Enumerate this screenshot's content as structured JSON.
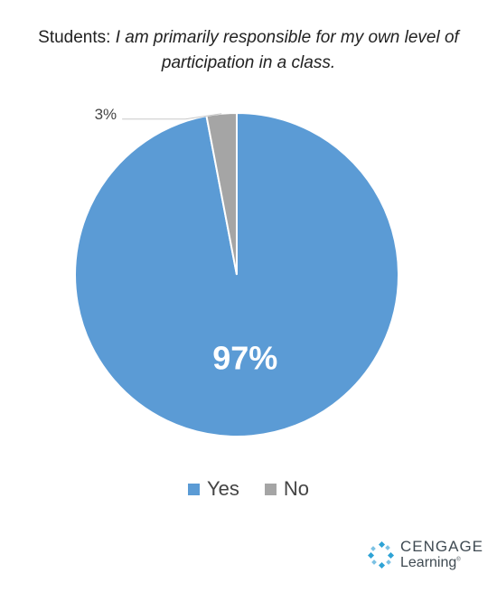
{
  "title": {
    "prefix": "Students: ",
    "question_line1": "I am primarily responsible for my own level of",
    "question_line2": "participation in a class."
  },
  "chart_data": {
    "type": "pie",
    "title": "Students: I am primarily responsible for my own level of participation in a class.",
    "slices": [
      {
        "label": "Yes",
        "value": 97,
        "display": "97%",
        "color": "#5b9bd5"
      },
      {
        "label": "No",
        "value": 3,
        "display": "3%",
        "color": "#a5a5a5"
      }
    ],
    "legend_position": "bottom"
  },
  "logo": {
    "word1": "CENGAGE",
    "word2": "Learning",
    "mark": "®"
  }
}
